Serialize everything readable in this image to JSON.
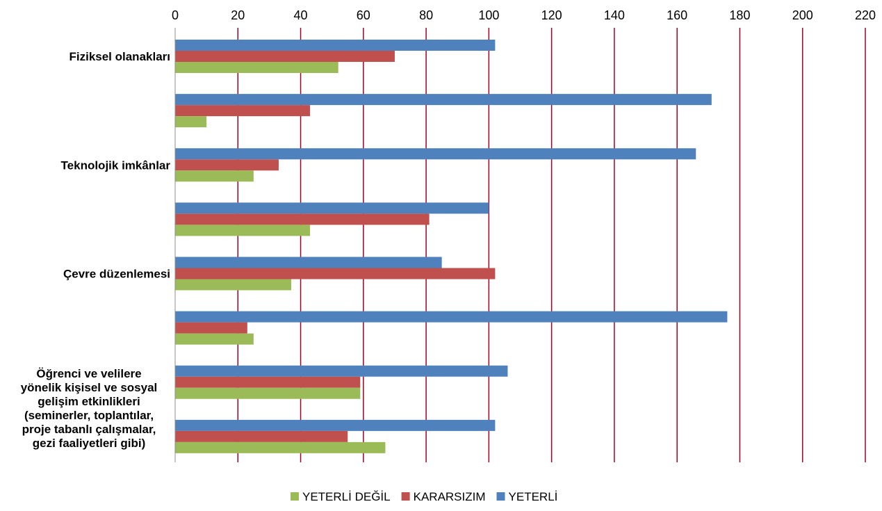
{
  "chart_data": {
    "type": "bar",
    "orientation": "horizontal",
    "categories": [
      "Fiziksel olanakları",
      "",
      "Teknolojik imkânlar",
      "",
      "Çevre düzenlemesi",
      "",
      "Öğrenci ve velilere yönelik kişisel ve sosyal gelişim etkinlikleri (seminerler, toplantılar, proje tabanlı çalışmalar, gezi faaliyetleri gibi)",
      ""
    ],
    "category_label_lines": [
      [
        "Fiziksel olanakları"
      ],
      [],
      [
        "Teknolojik imkânlar"
      ],
      [],
      [
        "Çevre düzenlemesi"
      ],
      [],
      [
        "Öğrenci ve velilere",
        "yönelik kişisel ve sosyal",
        "gelişim etkinlikleri",
        "(seminerler, toplantılar,",
        "proje tabanlı çalışmalar,",
        "gezi faaliyetleri gibi)"
      ],
      []
    ],
    "series": [
      {
        "name": "YETERLİ",
        "color": "#4f81bd",
        "values": [
          102,
          171,
          166,
          100,
          85,
          176,
          106,
          102
        ]
      },
      {
        "name": "KARARSIZIM",
        "color": "#c0504d",
        "values": [
          70,
          43,
          33,
          81,
          102,
          23,
          59,
          55
        ]
      },
      {
        "name": "YETERLİ DEĞİL",
        "color": "#9bbb59",
        "values": [
          52,
          10,
          25,
          43,
          37,
          25,
          59,
          67
        ]
      }
    ],
    "legend_order": [
      "YETERLİ DEĞİL",
      "KARARSIZIM",
      "YETERLİ"
    ],
    "xlim": [
      0,
      220
    ],
    "xticks": [
      0,
      20,
      40,
      60,
      80,
      100,
      120,
      140,
      160,
      180,
      200,
      220
    ],
    "xaxis_position": "top",
    "gridlines": true,
    "gridline_color": "#a50021",
    "legend_position": "bottom",
    "title": "",
    "xlabel": "",
    "ylabel": ""
  }
}
